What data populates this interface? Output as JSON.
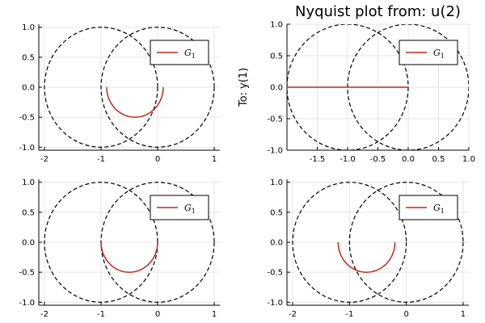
{
  "colors": {
    "series": "#c0281e",
    "circle": "#000000",
    "grid": "#e6e6e6",
    "axis": "#000000",
    "frame": "#000000"
  },
  "chart_data": [
    {
      "type": "line",
      "title": "",
      "ylabel": "",
      "xlim": [
        -2.1,
        1.1
      ],
      "ylim": [
        -1.05,
        1.05
      ],
      "xticks": [
        -2,
        -1,
        0,
        1
      ],
      "xtick_labels": [
        "-2",
        "-1",
        "0",
        "1"
      ],
      "yticks": [
        -1,
        -0.5,
        0,
        0.5,
        1
      ],
      "ytick_labels": [
        "-1.0",
        "-0.5",
        "0.0",
        "0.5",
        "1.0"
      ],
      "grid": true,
      "legend": {
        "position": "top-right",
        "entries": [
          {
            "label": "G",
            "subscript": "1"
          }
        ]
      },
      "circles": [
        {
          "center": [
            0,
            0
          ],
          "radius": 1,
          "style": "dashed"
        },
        {
          "center": [
            -1,
            0
          ],
          "radius": 1,
          "style": "dashed"
        }
      ],
      "series": [
        {
          "name": "G₁",
          "shape": "semicircle-lower",
          "center": [
            -0.4,
            0
          ],
          "radius": 0.5
        }
      ]
    },
    {
      "type": "line",
      "title": "Nyquist plot from: u(2)",
      "ylabel": "To: y(1)",
      "xlim": [
        -2.0,
        1.0
      ],
      "ylim": [
        -1.0,
        1.0
      ],
      "xticks": [
        -1.5,
        -1,
        -0.5,
        0,
        0.5,
        1
      ],
      "xtick_labels": [
        "-1.5",
        "-1.0",
        "-0.5",
        "0.0",
        "0.5",
        "1.0"
      ],
      "yticks": [
        -1,
        -0.5,
        0,
        0.5,
        1
      ],
      "ytick_labels": [
        "-1.0",
        "-0.5",
        "0.0",
        "0.5",
        "1.0"
      ],
      "grid": true,
      "legend": {
        "position": "top-right",
        "entries": [
          {
            "label": "G",
            "subscript": "1"
          }
        ]
      },
      "circles": [
        {
          "center": [
            0,
            0
          ],
          "radius": 1,
          "style": "dashed"
        },
        {
          "center": [
            -1,
            0
          ],
          "radius": 1,
          "style": "dashed"
        }
      ],
      "series": [
        {
          "name": "G₁",
          "shape": "line",
          "x": [
            -2.0,
            0.0
          ],
          "y": [
            0,
            0
          ]
        }
      ]
    },
    {
      "type": "line",
      "title": "",
      "ylabel": "",
      "xlim": [
        -2.1,
        1.1
      ],
      "ylim": [
        -1.05,
        1.05
      ],
      "xticks": [
        -2,
        -1,
        0,
        1
      ],
      "xtick_labels": [
        "-2",
        "-1",
        "0",
        "1"
      ],
      "yticks": [
        -1,
        -0.5,
        0,
        0.5,
        1
      ],
      "ytick_labels": [
        "-1.0",
        "-0.5",
        "0.0",
        "0.5",
        "1.0"
      ],
      "grid": true,
      "legend": {
        "position": "top-right",
        "entries": [
          {
            "label": "G",
            "subscript": "1"
          }
        ]
      },
      "circles": [
        {
          "center": [
            0,
            0
          ],
          "radius": 1,
          "style": "dashed"
        },
        {
          "center": [
            -1,
            0
          ],
          "radius": 1,
          "style": "dashed"
        }
      ],
      "series": [
        {
          "name": "G₁",
          "shape": "semicircle-lower",
          "center": [
            -0.5,
            0
          ],
          "radius": 0.5
        }
      ]
    },
    {
      "type": "line",
      "title": "",
      "ylabel": "",
      "xlim": [
        -2.1,
        1.1
      ],
      "ylim": [
        -1.05,
        1.05
      ],
      "xticks": [
        -2,
        -1,
        0,
        1
      ],
      "xtick_labels": [
        "-2",
        "-1",
        "0",
        "1"
      ],
      "yticks": [
        -1,
        -0.5,
        0,
        0.5,
        1
      ],
      "ytick_labels": [
        "-1.0",
        "-0.5",
        "0.0",
        "0.5",
        "1.0"
      ],
      "grid": true,
      "legend": {
        "position": "top-right",
        "entries": [
          {
            "label": "G",
            "subscript": "1"
          }
        ]
      },
      "circles": [
        {
          "center": [
            0,
            0
          ],
          "radius": 1,
          "style": "dashed"
        },
        {
          "center": [
            -1,
            0
          ],
          "radius": 1,
          "style": "dashed"
        }
      ],
      "series": [
        {
          "name": "G₁",
          "shape": "semicircle-lower",
          "center": [
            -0.7,
            0
          ],
          "radius": 0.5
        }
      ]
    }
  ]
}
